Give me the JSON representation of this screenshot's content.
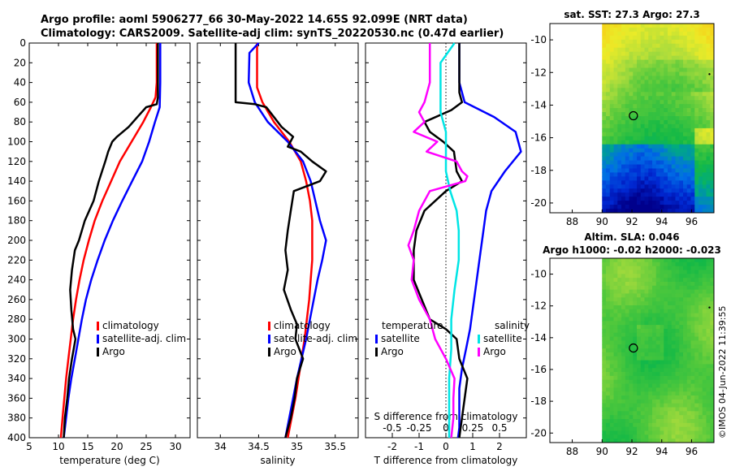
{
  "title": {
    "line1": "Argo profile: aoml 5906277_66 30-May-2022 14.65S 92.099E (NRT data)",
    "line2": "Climatology: CARS2009. Satellite-adj clim: synTS_20220530.nc (0.47d earlier)"
  },
  "watermark": "©IMOS 04-Jun-2022 11:39:55",
  "chart_data": [
    {
      "id": "temperature",
      "type": "line",
      "xlabel": "temperature (deg C)",
      "ylabel": "",
      "xlim": [
        5,
        32.5
      ],
      "ylim": [
        400,
        0
      ],
      "xticks": [
        5,
        10,
        15,
        20,
        25,
        30
      ],
      "yticks": [
        0,
        20,
        40,
        60,
        80,
        100,
        120,
        140,
        160,
        180,
        200,
        220,
        240,
        260,
        280,
        300,
        320,
        340,
        360,
        380,
        400
      ],
      "legend": [
        "climatology",
        "satellite-adj. clim",
        "Argo"
      ],
      "series": [
        {
          "name": "climatology",
          "color": "#ff0000",
          "points": [
            [
              26.8,
              0
            ],
            [
              26.8,
              40
            ],
            [
              26.6,
              55
            ],
            [
              25.8,
              65
            ],
            [
              24.5,
              80
            ],
            [
              22.5,
              100
            ],
            [
              20.5,
              120
            ],
            [
              19.0,
              140
            ],
            [
              17.5,
              160
            ],
            [
              16.2,
              180
            ],
            [
              15.2,
              200
            ],
            [
              14.3,
              220
            ],
            [
              13.6,
              240
            ],
            [
              13.0,
              260
            ],
            [
              12.5,
              280
            ],
            [
              12.1,
              300
            ],
            [
              11.7,
              320
            ],
            [
              11.3,
              340
            ],
            [
              11.0,
              360
            ],
            [
              10.7,
              380
            ],
            [
              10.4,
              400
            ]
          ]
        },
        {
          "name": "satellite-adj. clim",
          "color": "#0000ff",
          "points": [
            [
              27.4,
              0
            ],
            [
              27.4,
              40
            ],
            [
              27.3,
              65
            ],
            [
              26.5,
              80
            ],
            [
              25.5,
              100
            ],
            [
              24.3,
              120
            ],
            [
              22.6,
              140
            ],
            [
              20.9,
              160
            ],
            [
              19.3,
              180
            ],
            [
              17.9,
              200
            ],
            [
              16.7,
              220
            ],
            [
              15.6,
              240
            ],
            [
              14.7,
              260
            ],
            [
              14.0,
              280
            ],
            [
              13.4,
              300
            ],
            [
              12.8,
              320
            ],
            [
              12.2,
              340
            ],
            [
              11.7,
              360
            ],
            [
              11.3,
              380
            ],
            [
              10.9,
              400
            ]
          ]
        },
        {
          "name": "Argo",
          "color": "#000000",
          "points": [
            [
              27.0,
              0
            ],
            [
              27.0,
              55
            ],
            [
              26.8,
              62
            ],
            [
              25.0,
              65
            ],
            [
              23.5,
              75
            ],
            [
              22.0,
              85
            ],
            [
              20.0,
              95
            ],
            [
              19.2,
              100
            ],
            [
              18.5,
              110
            ],
            [
              18.0,
              120
            ],
            [
              16.9,
              140
            ],
            [
              16.0,
              160
            ],
            [
              14.5,
              180
            ],
            [
              13.5,
              200
            ],
            [
              12.8,
              210
            ],
            [
              12.3,
              230
            ],
            [
              12.0,
              250
            ],
            [
              12.2,
              270
            ],
            [
              12.5,
              290
            ],
            [
              12.9,
              300
            ],
            [
              12.3,
              320
            ],
            [
              11.8,
              340
            ],
            [
              11.5,
              360
            ],
            [
              11.1,
              380
            ],
            [
              10.9,
              400
            ]
          ]
        }
      ]
    },
    {
      "id": "salinity",
      "type": "line",
      "xlabel": "salinity",
      "xlim": [
        33.7,
        35.8
      ],
      "ylim": [
        400,
        0
      ],
      "xticks": [
        34,
        34.5,
        35,
        35.5
      ],
      "legend": [
        "climatology",
        "satellite-adj. clim",
        "Argo"
      ],
      "series": [
        {
          "name": "climatology",
          "color": "#ff0000",
          "points": [
            [
              34.48,
              0
            ],
            [
              34.48,
              45
            ],
            [
              34.55,
              60
            ],
            [
              34.7,
              80
            ],
            [
              34.9,
              100
            ],
            [
              35.05,
              120
            ],
            [
              35.12,
              140
            ],
            [
              35.17,
              160
            ],
            [
              35.2,
              180
            ],
            [
              35.2,
              200
            ],
            [
              35.2,
              220
            ],
            [
              35.18,
              240
            ],
            [
              35.16,
              260
            ],
            [
              35.13,
              280
            ],
            [
              35.1,
              300
            ],
            [
              35.06,
              320
            ],
            [
              35.02,
              340
            ],
            [
              34.98,
              360
            ],
            [
              34.93,
              380
            ],
            [
              34.88,
              400
            ]
          ]
        },
        {
          "name": "satellite-adj. clim",
          "color": "#0000ff",
          "points": [
            [
              34.5,
              0
            ],
            [
              34.38,
              10
            ],
            [
              34.37,
              40
            ],
            [
              34.45,
              60
            ],
            [
              34.62,
              80
            ],
            [
              34.88,
              100
            ],
            [
              35.08,
              120
            ],
            [
              35.18,
              140
            ],
            [
              35.24,
              160
            ],
            [
              35.3,
              180
            ],
            [
              35.38,
              200
            ],
            [
              35.33,
              220
            ],
            [
              35.27,
              240
            ],
            [
              35.22,
              260
            ],
            [
              35.17,
              280
            ],
            [
              35.12,
              300
            ],
            [
              35.06,
              320
            ],
            [
              35.0,
              340
            ],
            [
              34.95,
              360
            ],
            [
              34.9,
              380
            ],
            [
              34.85,
              400
            ]
          ]
        },
        {
          "name": "Argo",
          "color": "#000000",
          "points": [
            [
              34.2,
              0
            ],
            [
              34.2,
              40
            ],
            [
              34.2,
              60
            ],
            [
              34.45,
              62
            ],
            [
              34.6,
              65
            ],
            [
              34.8,
              85
            ],
            [
              34.95,
              95
            ],
            [
              34.88,
              105
            ],
            [
              35.05,
              110
            ],
            [
              35.2,
              120
            ],
            [
              35.38,
              130
            ],
            [
              35.3,
              140
            ],
            [
              34.96,
              150
            ],
            [
              34.92,
              170
            ],
            [
              34.88,
              190
            ],
            [
              34.85,
              210
            ],
            [
              34.88,
              230
            ],
            [
              34.83,
              250
            ],
            [
              34.92,
              270
            ],
            [
              35.0,
              285
            ],
            [
              34.98,
              300
            ],
            [
              35.08,
              320
            ],
            [
              35.0,
              340
            ],
            [
              34.97,
              360
            ],
            [
              34.92,
              380
            ],
            [
              34.85,
              400
            ]
          ]
        }
      ]
    },
    {
      "id": "differences",
      "type": "line",
      "xlabel": "T difference from climatology",
      "xlabel2": "S difference from climatology",
      "xlim": [
        -3,
        3
      ],
      "slim": [
        -0.75,
        0.75
      ],
      "ylim": [
        400,
        0
      ],
      "xticks": [
        -2,
        -1,
        0,
        1,
        2
      ],
      "sticks": [
        -0.5,
        -0.25,
        0,
        0.25,
        0.5
      ],
      "sticklabels": [
        "-0.5",
        "-0.25",
        "0",
        "0.25",
        "0.5"
      ],
      "legend_left_title": "temperature",
      "legend_right_title": "salinity",
      "legend": [
        "satellite",
        "Argo",
        "satellite",
        "Argo"
      ],
      "series": [
        {
          "name": "T satellite",
          "color": "#0000ff",
          "axis": "T",
          "points": [
            [
              0.5,
              0
            ],
            [
              0.5,
              40
            ],
            [
              0.7,
              60
            ],
            [
              1.8,
              75
            ],
            [
              2.6,
              90
            ],
            [
              2.8,
              110
            ],
            [
              2.2,
              130
            ],
            [
              1.7,
              150
            ],
            [
              1.5,
              170
            ],
            [
              1.4,
              190
            ],
            [
              1.3,
              210
            ],
            [
              1.2,
              230
            ],
            [
              1.1,
              250
            ],
            [
              1.0,
              270
            ],
            [
              0.9,
              290
            ],
            [
              0.75,
              310
            ],
            [
              0.6,
              330
            ],
            [
              0.5,
              350
            ],
            [
              0.5,
              370
            ],
            [
              0.5,
              390
            ],
            [
              0.45,
              400
            ]
          ]
        },
        {
          "name": "T Argo",
          "color": "#000000",
          "axis": "T",
          "points": [
            [
              0.5,
              0
            ],
            [
              0.5,
              50
            ],
            [
              0.6,
              60
            ],
            [
              0.2,
              68
            ],
            [
              -0.8,
              80
            ],
            [
              -0.6,
              90
            ],
            [
              -0.1,
              100
            ],
            [
              0.3,
              110
            ],
            [
              0.4,
              130
            ],
            [
              0.6,
              140
            ],
            [
              0.0,
              150
            ],
            [
              -0.8,
              170
            ],
            [
              -1.1,
              190
            ],
            [
              -1.2,
              210
            ],
            [
              -1.2,
              240
            ],
            [
              -0.9,
              260
            ],
            [
              -0.6,
              280
            ],
            [
              0.0,
              290
            ],
            [
              0.4,
              300
            ],
            [
              0.5,
              320
            ],
            [
              0.8,
              340
            ],
            [
              0.7,
              360
            ],
            [
              0.6,
              380
            ],
            [
              0.5,
              400
            ]
          ]
        },
        {
          "name": "S satellite",
          "color": "#00e5e5",
          "axis": "S",
          "points": [
            [
              0.08,
              0
            ],
            [
              -0.05,
              20
            ],
            [
              -0.05,
              50
            ],
            [
              -0.05,
              70
            ],
            [
              0.0,
              90
            ],
            [
              0.0,
              110
            ],
            [
              0.0,
              130
            ],
            [
              0.04,
              150
            ],
            [
              0.1,
              170
            ],
            [
              0.12,
              190
            ],
            [
              0.12,
              220
            ],
            [
              0.08,
              250
            ],
            [
              0.05,
              280
            ],
            [
              0.05,
              310
            ],
            [
              0.03,
              340
            ],
            [
              0.03,
              370
            ],
            [
              0.03,
              400
            ]
          ]
        },
        {
          "name": "S Argo",
          "color": "#ff00ff",
          "axis": "S",
          "points": [
            [
              -0.15,
              0
            ],
            [
              -0.15,
              40
            ],
            [
              -0.2,
              60
            ],
            [
              -0.25,
              70
            ],
            [
              -0.2,
              80
            ],
            [
              -0.3,
              90
            ],
            [
              -0.08,
              100
            ],
            [
              -0.18,
              110
            ],
            [
              0.1,
              120
            ],
            [
              0.15,
              130
            ],
            [
              0.2,
              135
            ],
            [
              0.18,
              140
            ],
            [
              -0.15,
              150
            ],
            [
              -0.25,
              170
            ],
            [
              -0.3,
              190
            ],
            [
              -0.35,
              205
            ],
            [
              -0.3,
              220
            ],
            [
              -0.32,
              240
            ],
            [
              -0.25,
              260
            ],
            [
              -0.15,
              280
            ],
            [
              -0.1,
              300
            ],
            [
              0.0,
              320
            ],
            [
              0.08,
              340
            ],
            [
              0.07,
              360
            ],
            [
              0.07,
              380
            ],
            [
              0.05,
              400
            ]
          ]
        }
      ]
    },
    {
      "id": "sst_map",
      "type": "heatmap",
      "title": "sat. SST: 27.3  Argo: 27.3",
      "xlim": [
        86.5,
        97.5
      ],
      "ylim": [
        -20.6,
        -9
      ],
      "xticks": [
        88,
        90,
        92,
        94,
        96
      ],
      "yticks": [
        -10,
        -12,
        -14,
        -16,
        -18,
        -20
      ],
      "argo_lon": 92.1,
      "argo_lat": -14.65
    },
    {
      "id": "sla_map",
      "type": "heatmap",
      "title": "Altim. SLA: 0.046",
      "subtitle": "Argo h1000: -0.02  h2000: -0.023",
      "xlim": [
        86.5,
        97.5
      ],
      "ylim": [
        -20.6,
        -9
      ],
      "xticks": [
        88,
        90,
        92,
        94,
        96
      ],
      "yticks": [
        -10,
        -12,
        -14,
        -16,
        -18,
        -20
      ],
      "argo_lon": 92.1,
      "argo_lat": -14.65
    }
  ]
}
